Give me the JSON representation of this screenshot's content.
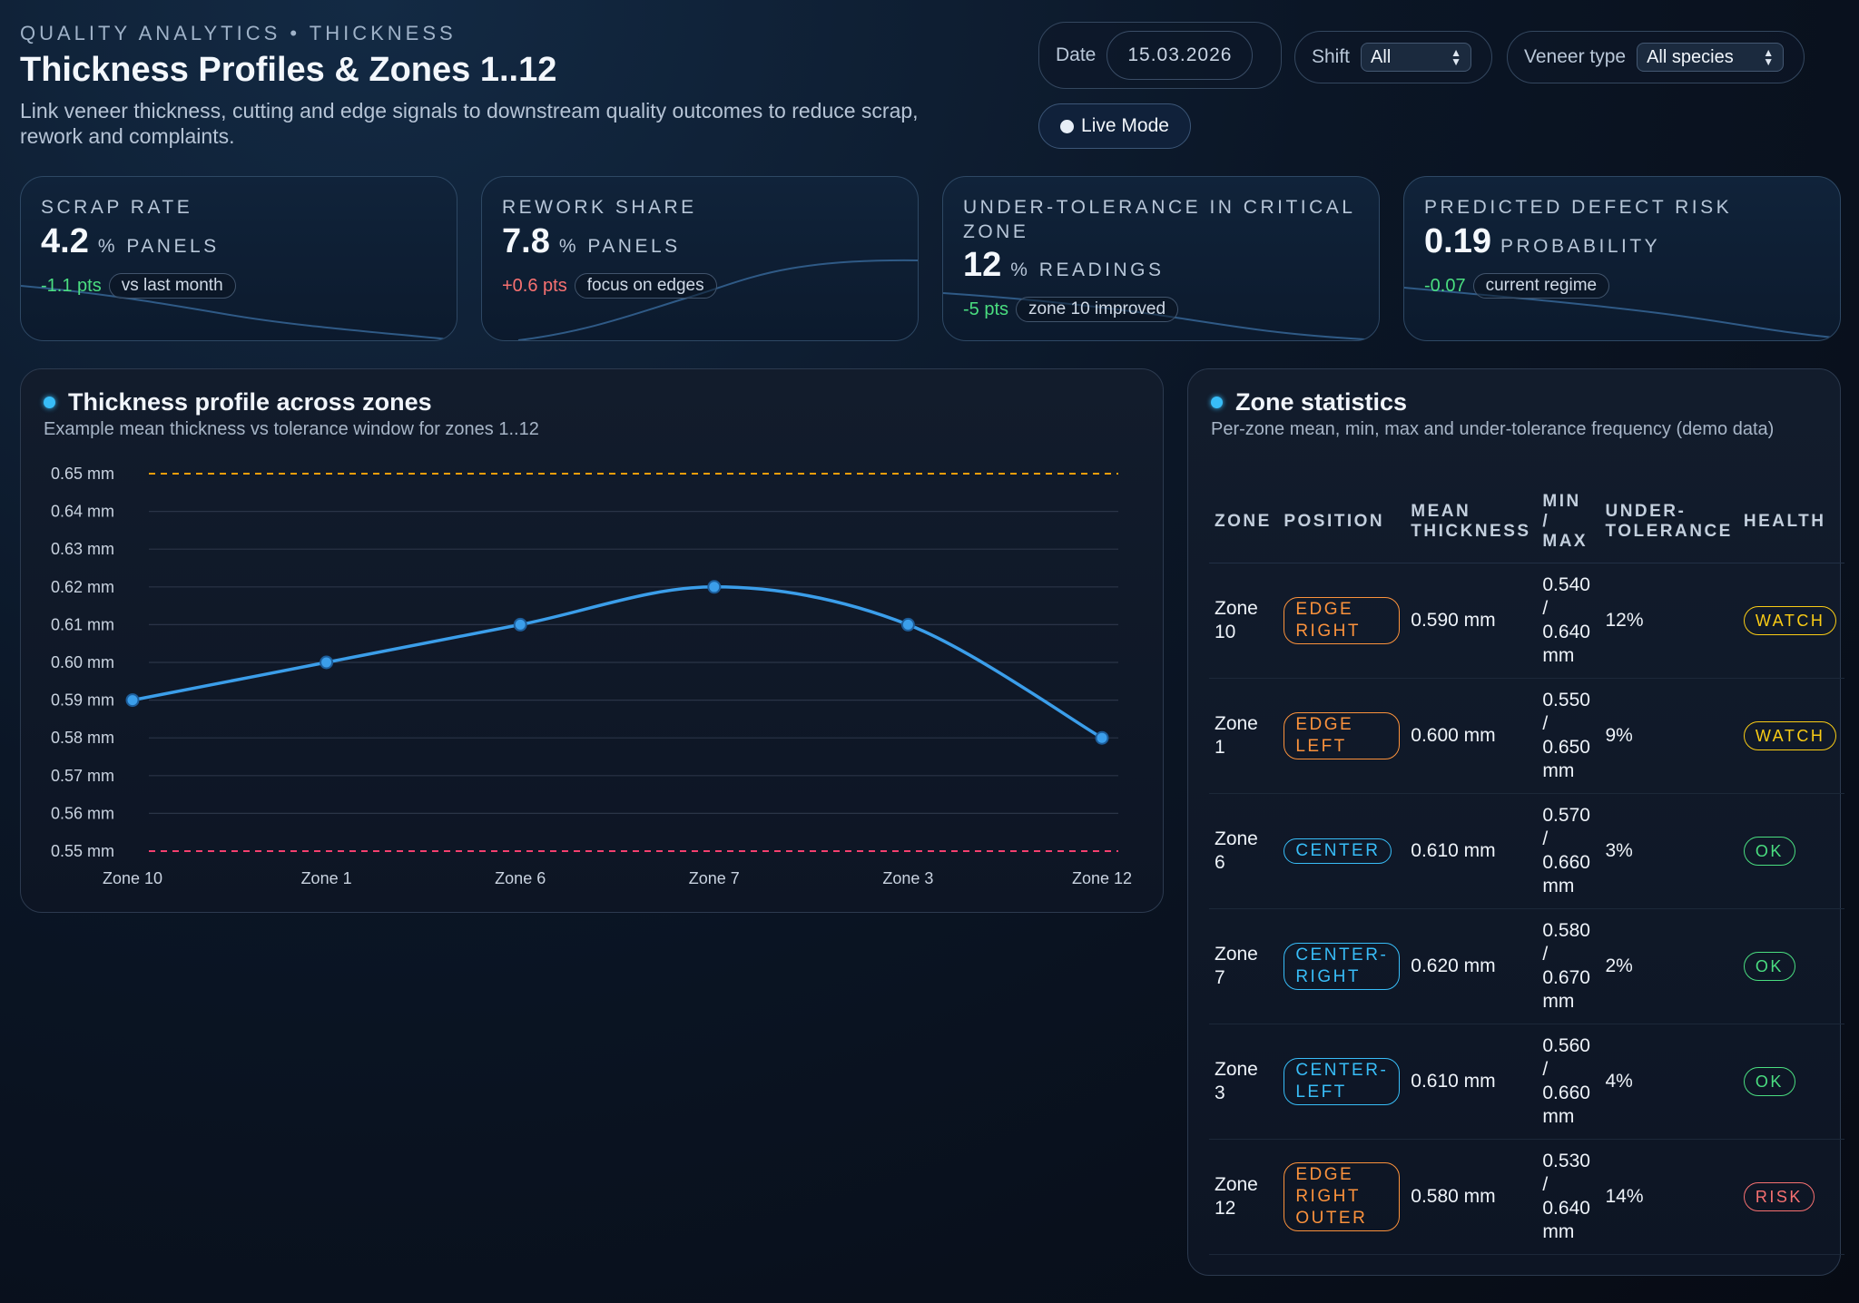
{
  "header": {
    "eyebrow": "QUALITY ANALYTICS • THICKNESS",
    "title": "Thickness Profiles & Zones 1..12",
    "subtitle": "Link veneer thickness, cutting and edge signals to downstream quality outcomes to reduce scrap, rework and complaints."
  },
  "filters": {
    "date_label": "Date",
    "date_value": "15.03.2026",
    "shift_label": "Shift",
    "shift_value": "All",
    "veneer_label": "Veneer type",
    "veneer_value": "All species",
    "live_mode": "Live Mode"
  },
  "kpis": [
    {
      "label": "SCRAP RATE",
      "value": "4.2",
      "unit": "% PANELS",
      "delta": "-1.1 pts",
      "delta_tone": "positive",
      "note": "vs last month",
      "trend": "down"
    },
    {
      "label": "REWORK SHARE",
      "value": "7.8",
      "unit": "% PANELS",
      "delta": "+0.6 pts",
      "delta_tone": "negative",
      "note": "focus on edges",
      "trend": "up"
    },
    {
      "label": "UNDER-TOLERANCE IN CRITICAL ZONE",
      "value": "12",
      "unit": "% READINGS",
      "delta": "-5 pts",
      "delta_tone": "positive",
      "note": "zone 10 improved",
      "trend": "down"
    },
    {
      "label": "PREDICTED DEFECT RISK",
      "value": "0.19",
      "unit": "PROBABILITY",
      "delta": "-0.07",
      "delta_tone": "positive",
      "note": "current regime",
      "trend": "down"
    }
  ],
  "profile_panel": {
    "title": "Thickness profile across zones",
    "subtitle": "Example mean thickness vs tolerance window for zones 1..12"
  },
  "chart_data": {
    "type": "line",
    "categories": [
      "Zone 10",
      "Zone 1",
      "Zone 6",
      "Zone 7",
      "Zone 3",
      "Zone 12"
    ],
    "series": [
      {
        "values": [
          0.59,
          0.6,
          0.61,
          0.62,
          0.61,
          0.58
        ],
        "color": "#3b9eea"
      }
    ],
    "upper_tolerance": {
      "value": 0.65,
      "color": "#f59e0b"
    },
    "lower_tolerance": {
      "value": 0.55,
      "color": "#f43f6e"
    },
    "y_ticks": [
      "0.55 mm",
      "0.56 mm",
      "0.57 mm",
      "0.58 mm",
      "0.59 mm",
      "0.60 mm",
      "0.61 mm",
      "0.62 mm",
      "0.63 mm",
      "0.64 mm",
      "0.65 mm"
    ],
    "ylim": [
      0.55,
      0.65
    ],
    "grid": true
  },
  "stats_panel": {
    "title": "Zone statistics",
    "subtitle": "Per-zone mean, min, max and under-tolerance frequency (demo data)",
    "columns": [
      "ZONE",
      "POSITION",
      "MEAN THICKNESS",
      "MIN / MAX",
      "UNDER-TOLERANCE",
      "HEALTH"
    ],
    "rows": [
      {
        "zone": "Zone 10",
        "position": "EDGE RIGHT",
        "pos_type": "edge",
        "mean": "0.590 mm",
        "minmax": "0.540 / 0.640 mm",
        "under": "12%",
        "health": "WATCH"
      },
      {
        "zone": "Zone 1",
        "position": "EDGE LEFT",
        "pos_type": "edge",
        "mean": "0.600 mm",
        "minmax": "0.550 / 0.650 mm",
        "under": "9%",
        "health": "WATCH"
      },
      {
        "zone": "Zone 6",
        "position": "CENTER",
        "pos_type": "center",
        "mean": "0.610 mm",
        "minmax": "0.570 / 0.660 mm",
        "under": "3%",
        "health": "OK"
      },
      {
        "zone": "Zone 7",
        "position": "CENTER-RIGHT",
        "pos_type": "center",
        "mean": "0.620 mm",
        "minmax": "0.580 / 0.670 mm",
        "under": "2%",
        "health": "OK"
      },
      {
        "zone": "Zone 3",
        "position": "CENTER-LEFT",
        "pos_type": "center",
        "mean": "0.610 mm",
        "minmax": "0.560 / 0.660 mm",
        "under": "4%",
        "health": "OK"
      },
      {
        "zone": "Zone 12",
        "position": "EDGE RIGHT OUTER",
        "pos_type": "edge",
        "mean": "0.580 mm",
        "minmax": "0.530 / 0.640 mm",
        "under": "14%",
        "health": "RISK"
      }
    ]
  }
}
